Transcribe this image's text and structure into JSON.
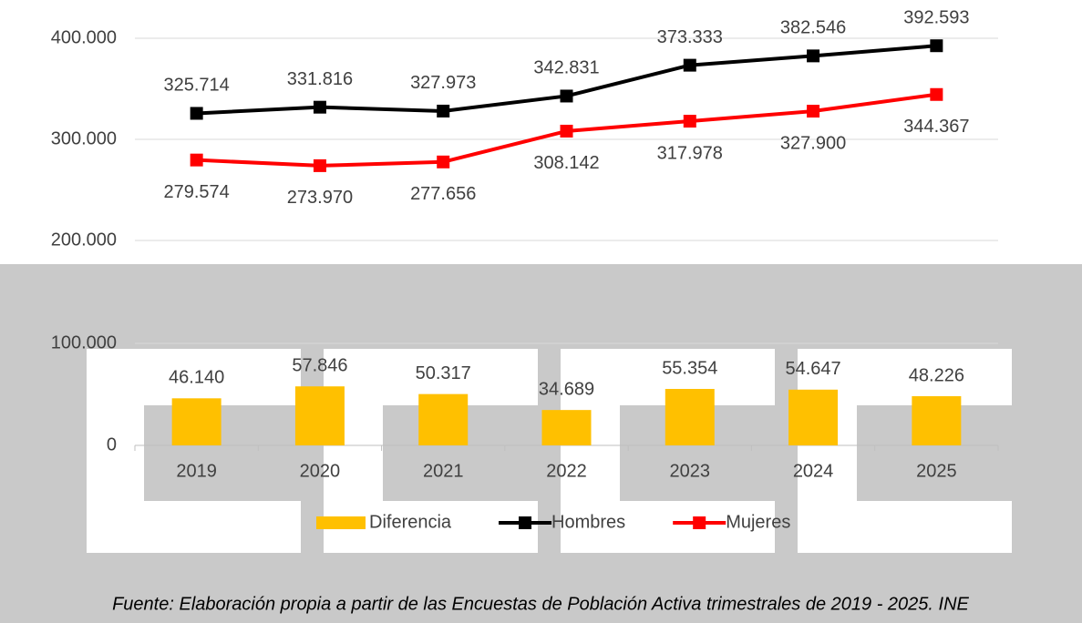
{
  "chart_data": [
    {
      "type": "line",
      "categories": [
        "2019",
        "2020",
        "2021",
        "2022",
        "2023",
        "2024",
        "2025"
      ],
      "series": [
        {
          "name": "Hombres",
          "color": "#000000",
          "values": [
            325714,
            331816,
            327973,
            342831,
            373333,
            382546,
            392593
          ],
          "value_labels": [
            "325.714",
            "331.816",
            "327.973",
            "342.831",
            "373.333",
            "382.546",
            "392.593"
          ]
        },
        {
          "name": "Mujeres",
          "color": "#ff0000",
          "values": [
            279574,
            273970,
            277656,
            308142,
            317978,
            327900,
            344367
          ],
          "value_labels": [
            "279.574",
            "273.970",
            "277.656",
            "308.142",
            "317.978",
            "327.900",
            "344.367"
          ]
        }
      ],
      "ylim": [
        200000,
        400000
      ],
      "yticks": [
        {
          "value": 200000,
          "label": "200.000"
        },
        {
          "value": 300000,
          "label": "300.000"
        },
        {
          "value": 400000,
          "label": "400.000"
        }
      ],
      "grid": true
    },
    {
      "type": "bar",
      "categories": [
        "2019",
        "2020",
        "2021",
        "2022",
        "2023",
        "2024",
        "2025"
      ],
      "series": [
        {
          "name": "Diferencia",
          "color": "#ffc000",
          "values": [
            46140,
            57846,
            50317,
            34689,
            55354,
            54647,
            48226
          ],
          "value_labels": [
            "46.140",
            "57.846",
            "50.317",
            "34.689",
            "55.354",
            "54.647",
            "48.226"
          ]
        }
      ],
      "ylim": [
        0,
        100000
      ],
      "yticks": [
        0,
        {
          "value": 100000,
          "label": "100.000"
        }
      ],
      "grid": true
    }
  ],
  "source": "Fuente: Elaboración propia a partir de las Encuestas de Población Activa trimestrales de 2019 - 2025. INE"
}
